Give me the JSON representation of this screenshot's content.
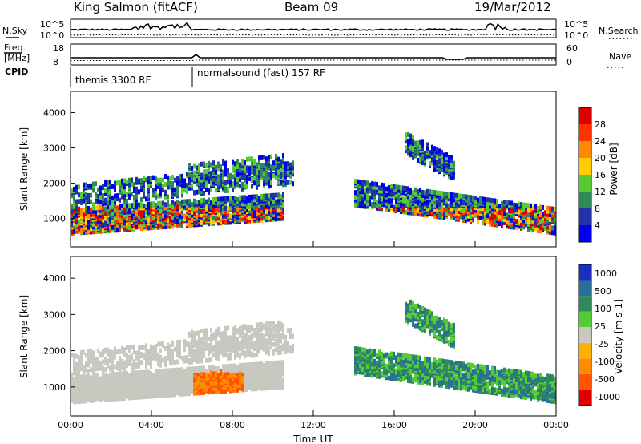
{
  "header": {
    "station": "King Salmon (fitACF)",
    "beam": "Beam 09",
    "date": "19/Mar/2012"
  },
  "left_labels": {
    "nsky": "N.Sky",
    "freq_line1": "Freq.",
    "freq_line2": "[MHz]",
    "cpid": "CPID"
  },
  "right_labels": {
    "nsearch": "N.Search",
    "nave": "Nave"
  },
  "axis_ticks": {
    "noise_left_hi": "10^5",
    "noise_left_lo": "10^0",
    "noise_right_hi": "10^5",
    "noise_right_lo": "10^0",
    "freq_left_hi": "18",
    "freq_left_lo": "8",
    "nave_right_hi": "60",
    "nave_right_lo": "0"
  },
  "cpid_segments": [
    "themis 3300 RF",
    "normalsound (fast) 157 RF"
  ],
  "colors": {
    "power_scale": [
      "#0000ee",
      "#2233aa",
      "#2e8b57",
      "#55cc33",
      "#ffcc00",
      "#ff8800",
      "#ff3300",
      "#dd0000"
    ],
    "velocity_scale": [
      "#1a2fbf",
      "#2a6e9a",
      "#2e8b57",
      "#55cc33",
      "#c8c8c0",
      "#ffb000",
      "#ff8c00",
      "#ff5500",
      "#e00000"
    ]
  },
  "chart_data": [
    {
      "type": "heatmap",
      "name": "power",
      "ylabel": "Slant Range [km]",
      "ylim": [
        200,
        4600
      ],
      "yticks": [
        "1000",
        "2000",
        "3000",
        "4000"
      ],
      "colorbar_label": "Power [dB]",
      "colorbar_ticks": [
        "4",
        "8",
        "12",
        "16",
        "20",
        "24",
        "28"
      ],
      "colorbar_range": [
        0,
        32
      ]
    },
    {
      "type": "heatmap",
      "name": "velocity",
      "ylabel": "Slant Range [km]",
      "ylim": [
        200,
        4600
      ],
      "yticks": [
        "1000",
        "2000",
        "3000",
        "4000"
      ],
      "colorbar_label": "Velocity [m s-1]",
      "colorbar_ticks": [
        "1000",
        "500",
        "100",
        "25",
        "-25",
        "-100",
        "-500",
        "-1000"
      ]
    }
  ],
  "time_axis": {
    "label": "Time UT",
    "ticks": [
      "00:00",
      "04:00",
      "08:00",
      "12:00",
      "16:00",
      "20:00",
      "00:00"
    ]
  }
}
